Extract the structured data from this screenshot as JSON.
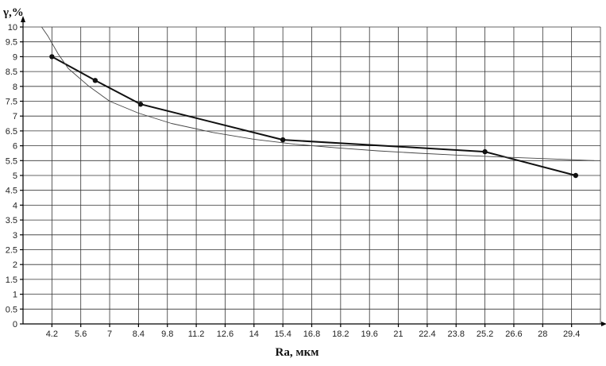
{
  "chart_data": {
    "type": "line",
    "title": "",
    "ylabel": "γ,%",
    "xlabel": "Ra, мкм",
    "xlim": [
      2.8,
      30.8
    ],
    "ylim": [
      0,
      10
    ],
    "x_ticks": [
      4.2,
      5.6,
      7,
      8.4,
      9.8,
      11.2,
      12.6,
      14,
      15.4,
      16.8,
      18.2,
      19.6,
      21,
      22.4,
      23.8,
      25.2,
      26.6,
      28,
      29.4
    ],
    "x_tick_labels": [
      "4.2",
      "5.6",
      "7",
      "8.4",
      "9.8",
      "11.2",
      "12.6",
      "14",
      "15.4",
      "16.8",
      "18.2",
      "19.6",
      "21",
      "22.4",
      "23.8",
      "25.2",
      "26.6",
      "28",
      "29.4"
    ],
    "y_ticks": [
      0,
      0.5,
      1,
      1.5,
      2,
      2.5,
      3,
      3.5,
      4,
      4.5,
      5,
      5.5,
      6,
      6.5,
      7,
      7.5,
      8,
      8.5,
      9,
      9.5,
      10
    ],
    "y_tick_labels": [
      "0",
      "0.5",
      "1",
      "1.5",
      "2",
      "2.5",
      "3",
      "3.5",
      "4",
      "4.5",
      "5",
      "5.5",
      "6",
      "6.5",
      "7",
      "7.5",
      "8",
      "8.5",
      "9",
      "9.5",
      "10"
    ],
    "grid": true,
    "legend": "none",
    "series": [
      {
        "style": "thick line with markers",
        "color": "#111111",
        "x": [
          4.2,
          6.3,
          8.5,
          15.4,
          25.2,
          29.6
        ],
        "y": [
          9.0,
          8.2,
          7.4,
          6.2,
          5.8,
          5.0
        ]
      },
      {
        "style": "thin trend curve",
        "color": "#444444",
        "x": [
          3.7,
          4.0,
          4.5,
          5.0,
          6.0,
          7.0,
          8.4,
          10.0,
          12.0,
          14.0,
          16.0,
          18.0,
          20.0,
          22.0,
          24.0,
          26.0,
          28.0,
          30.5
        ],
        "y": [
          10.0,
          9.7,
          9.1,
          8.6,
          8.0,
          7.5,
          7.1,
          6.75,
          6.45,
          6.22,
          6.05,
          5.93,
          5.83,
          5.75,
          5.68,
          5.62,
          5.57,
          5.5
        ]
      }
    ]
  }
}
